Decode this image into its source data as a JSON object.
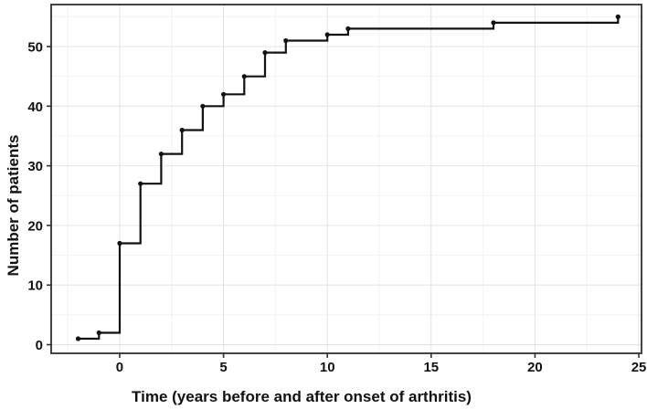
{
  "chart_data": {
    "type": "line",
    "subtype": "step-after",
    "title": "",
    "xlabel": "Time (years before and after onset of arthritis)",
    "ylabel": "Number of patients",
    "points": [
      [
        -2,
        1
      ],
      [
        -1,
        2
      ],
      [
        0,
        17
      ],
      [
        1,
        27
      ],
      [
        2,
        32
      ],
      [
        3,
        36
      ],
      [
        4,
        40
      ],
      [
        5,
        42
      ],
      [
        6,
        45
      ],
      [
        7,
        49
      ],
      [
        8,
        51
      ],
      [
        10,
        52
      ],
      [
        11,
        53
      ],
      [
        18,
        54
      ],
      [
        24,
        55
      ]
    ],
    "x_ticks": [
      0,
      5,
      10,
      15,
      20,
      25
    ],
    "y_ticks": [
      0,
      10,
      20,
      30,
      40,
      50
    ],
    "x_minor_gridlines": [
      -2.5,
      2.5,
      7.5,
      12.5,
      17.5,
      22.5
    ],
    "y_minor_gridlines": [
      5,
      15,
      25,
      35,
      45,
      55
    ],
    "xlim": [
      -3.3,
      25.13
    ],
    "ylim": [
      -1.45,
      57.05
    ],
    "grid": "on",
    "legend_position": "none",
    "colors": {
      "line": "#121212",
      "marker": "#121212",
      "panel_border": "#2f2f2f",
      "tick_mark": "#333333",
      "grid_major": "#e4e4e4",
      "grid_minor": "#f1f1f1",
      "text": "#111111",
      "background": "#ffffff"
    }
  }
}
